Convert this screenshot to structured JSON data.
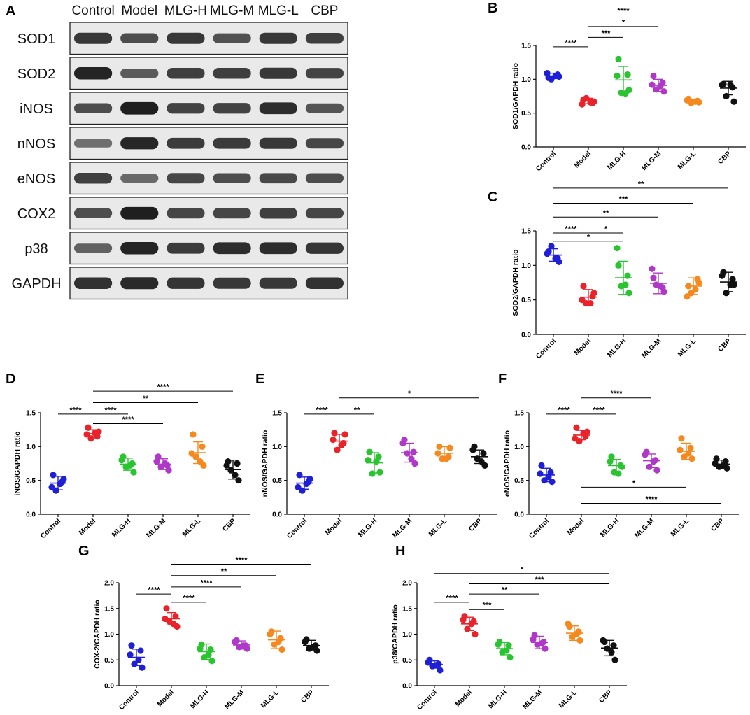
{
  "colors": {
    "Control": "#1f1fd6",
    "Model": "#e8232a",
    "MLG-H": "#2bc431",
    "MLG-M": "#b038c8",
    "MLG-L": "#f5891f",
    "CBP": "#111111"
  },
  "blot_panel": {
    "letter": "A",
    "lanes": [
      "Control",
      "Model",
      "MLG-H",
      "MLG-M",
      "MLG-L",
      "CBP"
    ],
    "rows": [
      {
        "label": "SOD1",
        "intensity": [
          0.8,
          0.65,
          0.8,
          0.62,
          0.8,
          0.75
        ]
      },
      {
        "label": "SOD2",
        "intensity": [
          0.95,
          0.55,
          0.75,
          0.75,
          0.8,
          0.72
        ]
      },
      {
        "label": "iNOS",
        "intensity": [
          0.65,
          0.98,
          0.72,
          0.72,
          0.88,
          0.6
        ]
      },
      {
        "label": "nNOS",
        "intensity": [
          0.4,
          0.92,
          0.78,
          0.78,
          0.8,
          0.7
        ]
      },
      {
        "label": "eNOS",
        "intensity": [
          0.75,
          0.45,
          0.7,
          0.65,
          0.68,
          0.65
        ]
      },
      {
        "label": "COX2",
        "intensity": [
          0.65,
          0.98,
          0.7,
          0.7,
          0.75,
          0.7
        ]
      },
      {
        "label": "p38",
        "intensity": [
          0.5,
          0.95,
          0.78,
          0.88,
          0.88,
          0.82
        ]
      },
      {
        "label": "GAPDH",
        "intensity": [
          0.85,
          0.9,
          0.82,
          0.8,
          0.8,
          0.85
        ]
      }
    ]
  },
  "chart_data": [
    {
      "panel": "B",
      "type": "scatter",
      "ylabel": "SOD1/GAPDH ratio",
      "ylim": [
        0,
        1.5
      ],
      "yticks": [
        "0.0",
        "0.5",
        "1.0",
        "1.5"
      ],
      "categories": [
        "Control",
        "Model",
        "MLG-H",
        "MLG-M",
        "MLG-L",
        "CBP"
      ],
      "points": [
        [
          1.02,
          1.07,
          1.0,
          1.04,
          1.09,
          1.05
        ],
        [
          0.7,
          0.65,
          0.72,
          0.67,
          0.63,
          0.66
        ],
        [
          1.3,
          1.07,
          0.8,
          0.84,
          1.05,
          0.79
        ],
        [
          1.05,
          0.95,
          0.85,
          0.82,
          0.92,
          0.9
        ],
        [
          0.71,
          0.68,
          0.65,
          0.66,
          0.69,
          0.67
        ],
        [
          0.93,
          0.88,
          0.75,
          0.67,
          0.92,
          0.92
        ]
      ],
      "mean": [
        1.05,
        0.68,
        0.99,
        0.91,
        0.68,
        0.87
      ],
      "sd": [
        0.04,
        0.04,
        0.2,
        0.09,
        0.02,
        0.1
      ],
      "significance": [
        {
          "from": "Control",
          "to": "Model",
          "label": "****",
          "y": 1.48
        },
        {
          "from": "Model",
          "to": "MLG-H",
          "label": "***",
          "y": 1.62
        },
        {
          "from": "Model",
          "to": "MLG-M",
          "label": "*",
          "y": 1.78
        },
        {
          "from": "Control",
          "to": "MLG-L",
          "label": "****",
          "y": 1.95
        }
      ]
    },
    {
      "panel": "C",
      "type": "scatter",
      "ylabel": "SOD2/GAPDH ratio",
      "ylim": [
        0,
        1.5
      ],
      "yticks": [
        "0.0",
        "0.5",
        "1.0",
        "1.5"
      ],
      "categories": [
        "Control",
        "Model",
        "MLG-H",
        "MLG-M",
        "MLG-L",
        "CBP"
      ],
      "points": [
        [
          1.2,
          1.1,
          1.28,
          1.05,
          1.17,
          1.1
        ],
        [
          0.7,
          0.55,
          0.45,
          0.6,
          0.5,
          0.45
        ],
        [
          1.0,
          0.85,
          0.7,
          0.6,
          1.25,
          0.72
        ],
        [
          0.82,
          0.68,
          0.72,
          0.62,
          0.95,
          0.7
        ],
        [
          0.7,
          0.8,
          0.6,
          0.75,
          0.55,
          0.65
        ],
        [
          0.9,
          0.8,
          0.6,
          0.72,
          0.85,
          0.72
        ]
      ],
      "mean": [
        1.15,
        0.54,
        0.82,
        0.74,
        0.7,
        0.76
      ],
      "sd": [
        0.09,
        0.11,
        0.24,
        0.15,
        0.12,
        0.14
      ],
      "significance": [
        {
          "from": "Control",
          "to": "Model",
          "label": "****",
          "y": 1.47
        },
        {
          "from": "Model",
          "to": "MLG-H",
          "label": "*",
          "y": 1.47
        },
        {
          "from": "Control",
          "to": "MLG-H",
          "label": "*",
          "y": 1.35
        },
        {
          "from": "Control",
          "to": "MLG-M",
          "label": "**",
          "y": 1.7
        },
        {
          "from": "Control",
          "to": "MLG-L",
          "label": "***",
          "y": 1.9
        },
        {
          "from": "Control",
          "to": "CBP",
          "label": "**",
          "y": 2.12
        }
      ]
    },
    {
      "panel": "D",
      "type": "scatter",
      "ylabel": "iNOS/GAPDH ratio",
      "ylim": [
        0,
        1.5
      ],
      "yticks": [
        "0.0",
        "0.5",
        "1.0",
        "1.5"
      ],
      "categories": [
        "Control",
        "Model",
        "MLG-H",
        "MLG-M",
        "MLG-L",
        "CBP"
      ],
      "points": [
        [
          0.58,
          0.48,
          0.35,
          0.52,
          0.4,
          0.45
        ],
        [
          1.28,
          1.15,
          1.12,
          1.22,
          1.18,
          1.2
        ],
        [
          0.85,
          0.75,
          0.7,
          0.62,
          0.8,
          0.72
        ],
        [
          0.85,
          0.72,
          0.7,
          0.65,
          0.78,
          0.75
        ],
        [
          1.18,
          1.0,
          0.85,
          0.72,
          0.9,
          0.78
        ],
        [
          0.78,
          0.75,
          0.65,
          0.5,
          0.72,
          0.58
        ]
      ],
      "mean": [
        0.46,
        1.19,
        0.74,
        0.74,
        0.91,
        0.66
      ],
      "sd": [
        0.1,
        0.06,
        0.09,
        0.08,
        0.16,
        0.14
      ],
      "significance": [
        {
          "from": "Control",
          "to": "Model",
          "label": "****",
          "y": 1.48
        },
        {
          "from": "Model",
          "to": "MLG-H",
          "label": "****",
          "y": 1.48
        },
        {
          "from": "Model",
          "to": "MLG-M",
          "label": "****",
          "y": 1.34
        },
        {
          "from": "Model",
          "to": "MLG-L",
          "label": "**",
          "y": 1.65
        },
        {
          "from": "Model",
          "to": "CBP",
          "label": "****",
          "y": 1.82
        }
      ]
    },
    {
      "panel": "E",
      "type": "scatter",
      "ylabel": "nNOS/GAPDH ratio",
      "ylim": [
        0,
        1.5
      ],
      "yticks": [
        "0.0",
        "0.5",
        "1.0",
        "1.5"
      ],
      "categories": [
        "Control",
        "Model",
        "MLG-H",
        "MLG-M",
        "MLG-L",
        "CBP"
      ],
      "points": [
        [
          0.58,
          0.48,
          0.35,
          0.52,
          0.4,
          0.45
        ],
        [
          1.2,
          1.05,
          0.95,
          1.18,
          1.1,
          1.02
        ],
        [
          0.92,
          0.85,
          0.6,
          0.62,
          0.8,
          0.78
        ],
        [
          1.1,
          0.92,
          0.9,
          0.75,
          1.05,
          0.82
        ],
        [
          1.0,
          0.85,
          0.82,
          0.98,
          0.9,
          0.82
        ],
        [
          1.0,
          0.9,
          0.82,
          0.72,
          0.95,
          0.78
        ]
      ],
      "mean": [
        0.46,
        1.08,
        0.76,
        0.91,
        0.9,
        0.85
      ],
      "sd": [
        0.09,
        0.1,
        0.15,
        0.14,
        0.1,
        0.1
      ],
      "significance": [
        {
          "from": "Control",
          "to": "Model",
          "label": "****",
          "y": 1.48
        },
        {
          "from": "Model",
          "to": "MLG-H",
          "label": "**",
          "y": 1.48
        },
        {
          "from": "Model",
          "to": "CBP",
          "label": "*",
          "y": 1.72
        }
      ]
    },
    {
      "panel": "F",
      "type": "scatter",
      "ylabel": "eNOS/GAPDH ratio",
      "ylim": [
        0,
        1.5
      ],
      "yticks": [
        "0.0",
        "0.5",
        "1.0",
        "1.5"
      ],
      "categories": [
        "Control",
        "Model",
        "MLG-H",
        "MLG-M",
        "MLG-L",
        "CBP"
      ],
      "points": [
        [
          0.72,
          0.62,
          0.5,
          0.48,
          0.6,
          0.55
        ],
        [
          1.28,
          1.15,
          1.08,
          1.22,
          1.12,
          1.2
        ],
        [
          0.85,
          0.72,
          0.62,
          0.7,
          0.78,
          0.6
        ],
        [
          0.92,
          0.8,
          0.7,
          0.65,
          0.88,
          0.78
        ],
        [
          1.12,
          0.98,
          0.85,
          0.82,
          0.95,
          0.9
        ],
        [
          0.82,
          0.78,
          0.7,
          0.68,
          0.75,
          0.72
        ]
      ],
      "mean": [
        0.58,
        1.17,
        0.72,
        0.79,
        0.93,
        0.74
      ],
      "sd": [
        0.1,
        0.07,
        0.09,
        0.1,
        0.12,
        0.06
      ],
      "significance": [
        {
          "from": "Control",
          "to": "Model",
          "label": "****",
          "y": 1.48
        },
        {
          "from": "Model",
          "to": "MLG-H",
          "label": "****",
          "y": 1.48
        },
        {
          "from": "Model",
          "to": "MLG-M",
          "label": "****",
          "y": 1.72
        },
        {
          "from": "Model",
          "to": "MLG-L",
          "label": "*",
          "y": 0.4
        },
        {
          "from": "Model",
          "to": "CBP",
          "label": "****",
          "y": 0.16
        }
      ]
    },
    {
      "panel": "G",
      "type": "scatter",
      "ylabel": "COX-2/GAPDH ratio",
      "ylim": [
        0,
        2.0
      ],
      "yticks": [
        "0.0",
        "0.5",
        "1.0",
        "1.5",
        "2.0"
      ],
      "categories": [
        "Control",
        "Model",
        "MLG-H",
        "MLG-M",
        "MLG-L",
        "CBP"
      ],
      "points": [
        [
          0.78,
          0.68,
          0.42,
          0.35,
          0.6,
          0.5
        ],
        [
          1.5,
          1.35,
          1.25,
          1.15,
          1.3,
          1.2
        ],
        [
          0.8,
          0.7,
          0.55,
          0.48,
          0.72,
          0.6
        ],
        [
          0.88,
          0.78,
          0.75,
          0.72,
          0.85,
          0.78
        ],
        [
          1.05,
          0.92,
          0.8,
          0.7,
          1.0,
          0.85
        ],
        [
          0.9,
          0.78,
          0.72,
          0.68,
          0.85,
          0.75
        ]
      ],
      "mean": [
        0.55,
        1.3,
        0.66,
        0.79,
        0.89,
        0.78
      ],
      "sd": [
        0.16,
        0.12,
        0.15,
        0.08,
        0.17,
        0.1
      ],
      "significance": [
        {
          "from": "Control",
          "to": "Model",
          "label": "****",
          "y": 1.78
        },
        {
          "from": "Model",
          "to": "MLG-H",
          "label": "****",
          "y": 1.62
        },
        {
          "from": "Model",
          "to": "MLG-M",
          "label": "****",
          "y": 1.92
        },
        {
          "from": "Model",
          "to": "MLG-L",
          "label": "**",
          "y": 2.14
        },
        {
          "from": "Model",
          "to": "CBP",
          "label": "****",
          "y": 2.36
        }
      ]
    },
    {
      "panel": "H",
      "type": "scatter",
      "ylabel": "p38/GAPDH ratio",
      "ylim": [
        0,
        2.0
      ],
      "yticks": [
        "0.0",
        "0.5",
        "1.0",
        "1.5",
        "2.0"
      ],
      "categories": [
        "Control",
        "Model",
        "MLG-H",
        "MLG-M",
        "MLG-L",
        "CBP"
      ],
      "points": [
        [
          0.5,
          0.42,
          0.38,
          0.3,
          0.45,
          0.4
        ],
        [
          1.35,
          1.25,
          1.1,
          1.0,
          1.28,
          1.2
        ],
        [
          0.85,
          0.78,
          0.65,
          0.55,
          0.8,
          0.68
        ],
        [
          0.98,
          0.85,
          0.8,
          0.72,
          0.9,
          0.82
        ],
        [
          1.15,
          1.05,
          0.95,
          0.88,
          1.2,
          1.0
        ],
        [
          0.85,
          0.78,
          0.72,
          0.5,
          0.88,
          0.65
        ]
      ],
      "mean": [
        0.41,
        1.2,
        0.72,
        0.84,
        1.02,
        0.73
      ],
      "sd": [
        0.07,
        0.13,
        0.12,
        0.12,
        0.14,
        0.15
      ],
      "significance": [
        {
          "from": "Control",
          "to": "Model",
          "label": "****",
          "y": 1.62
        },
        {
          "from": "Model",
          "to": "MLG-H",
          "label": "***",
          "y": 1.48
        },
        {
          "from": "Model",
          "to": "MLG-M",
          "label": "**",
          "y": 1.78
        },
        {
          "from": "Model",
          "to": "CBP",
          "label": "***",
          "y": 1.98
        },
        {
          "from": "Control",
          "to": "CBP",
          "label": "*",
          "y": 2.18
        }
      ]
    }
  ]
}
